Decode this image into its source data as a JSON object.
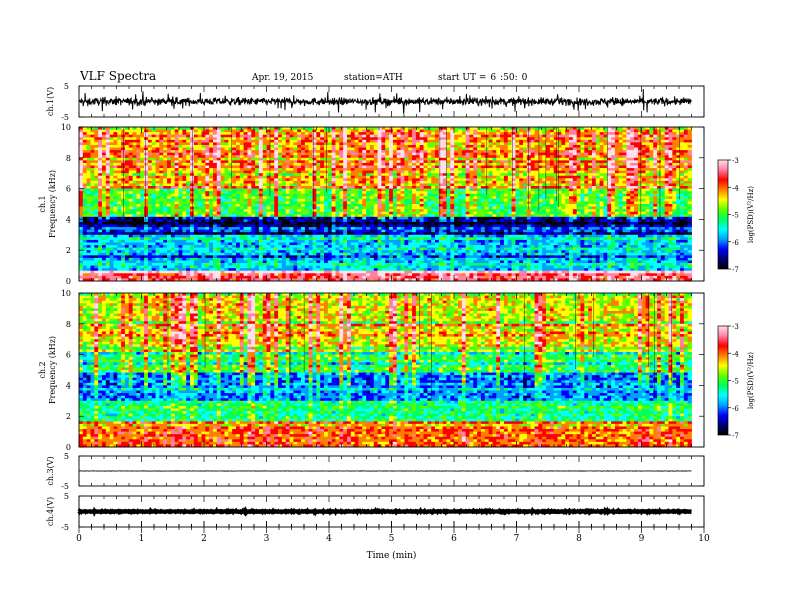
{
  "header": {
    "title": "VLF  Spectra",
    "date": "Apr. 19, 2015",
    "station": "station=ATH",
    "start_prefix": "start  UT  =",
    "start_h": "6",
    "start_m": ":50:",
    "start_s": "0"
  },
  "chart_data": [
    {
      "type": "line",
      "panel": "ch1-waveform",
      "ylabel": "ch.1(V)",
      "ylim": [
        -5,
        5
      ],
      "yticks": [
        "5",
        "-5"
      ],
      "xlim": [
        0,
        10
      ],
      "note_values": "noisy waveform roughly between -1.5 and 1.5 V with spikes up to about ±2 V, ending near 9.8 min",
      "data_end": 9.8
    },
    {
      "type": "heatmap",
      "panel": "ch1-spectrogram",
      "ylabel_line1": "ch.1",
      "ylabel_line2": "Frequency  (kHz)",
      "ylim": [
        0,
        10
      ],
      "yticks": [
        "0",
        "2",
        "4",
        "6",
        "8",
        "10"
      ],
      "xlim": [
        0,
        10
      ],
      "data_end": 9.8,
      "colorbar": {
        "label": "log(PSD)(V²/Hz)",
        "range": [
          -7,
          -3
        ],
        "ticks": [
          "-3",
          "-4",
          "-5",
          "-6",
          "-7"
        ]
      },
      "band_profile": [
        {
          "fmax": 0.6,
          "level": -3.6
        },
        {
          "fmax": 3.0,
          "level": -5.8
        },
        {
          "fmax": 4.2,
          "level": -6.6
        },
        {
          "fmax": 6.0,
          "level": -5.0
        },
        {
          "fmax": 10.0,
          "level": -4.3
        }
      ]
    },
    {
      "type": "heatmap",
      "panel": "ch2-spectrogram",
      "ylabel_line1": "ch.2",
      "ylabel_line2": "Frequency  (kHz)",
      "ylim": [
        0,
        10
      ],
      "yticks": [
        "0",
        "2",
        "4",
        "6",
        "8",
        "10"
      ],
      "xlim": [
        0,
        10
      ],
      "data_end": 9.8,
      "colorbar": {
        "label": "log(PSD)(V²/Hz)",
        "range": [
          -7,
          -3
        ],
        "ticks": [
          "-3",
          "-4",
          "-5",
          "-6",
          "-7"
        ]
      },
      "band_profile": [
        {
          "fmax": 1.6,
          "level": -4.0
        },
        {
          "fmax": 3.0,
          "level": -5.3
        },
        {
          "fmax": 4.8,
          "level": -6.0
        },
        {
          "fmax": 6.5,
          "level": -5.1
        },
        {
          "fmax": 10.0,
          "level": -4.5
        }
      ]
    },
    {
      "type": "line",
      "panel": "ch3-waveform",
      "ylabel": "ch.3(V)",
      "ylim": [
        -5,
        5
      ],
      "yticks": [
        "5",
        "-5"
      ],
      "xlim": [
        0,
        10
      ],
      "note_values": "flat trace near 0 V",
      "data_end": 9.8
    },
    {
      "type": "line",
      "panel": "ch4-waveform",
      "ylabel": "ch.4(V)",
      "ylim": [
        -5,
        5
      ],
      "yticks": [
        "5",
        "-5"
      ],
      "xlim": [
        0,
        10
      ],
      "note_values": "thick flat trace near 0 V",
      "data_end": 9.8
    }
  ],
  "xaxis": {
    "label": "Time  (min)",
    "ticks": [
      "0",
      "1",
      "2",
      "3",
      "4",
      "5",
      "6",
      "7",
      "8",
      "9",
      "10"
    ]
  },
  "colormap": [
    "#000000",
    "#00006e",
    "#0000ff",
    "#00a0ff",
    "#00ffff",
    "#00ff60",
    "#60ff00",
    "#ffff00",
    "#ff8000",
    "#ff0000",
    "#ff80a0",
    "#ffe0e8"
  ]
}
